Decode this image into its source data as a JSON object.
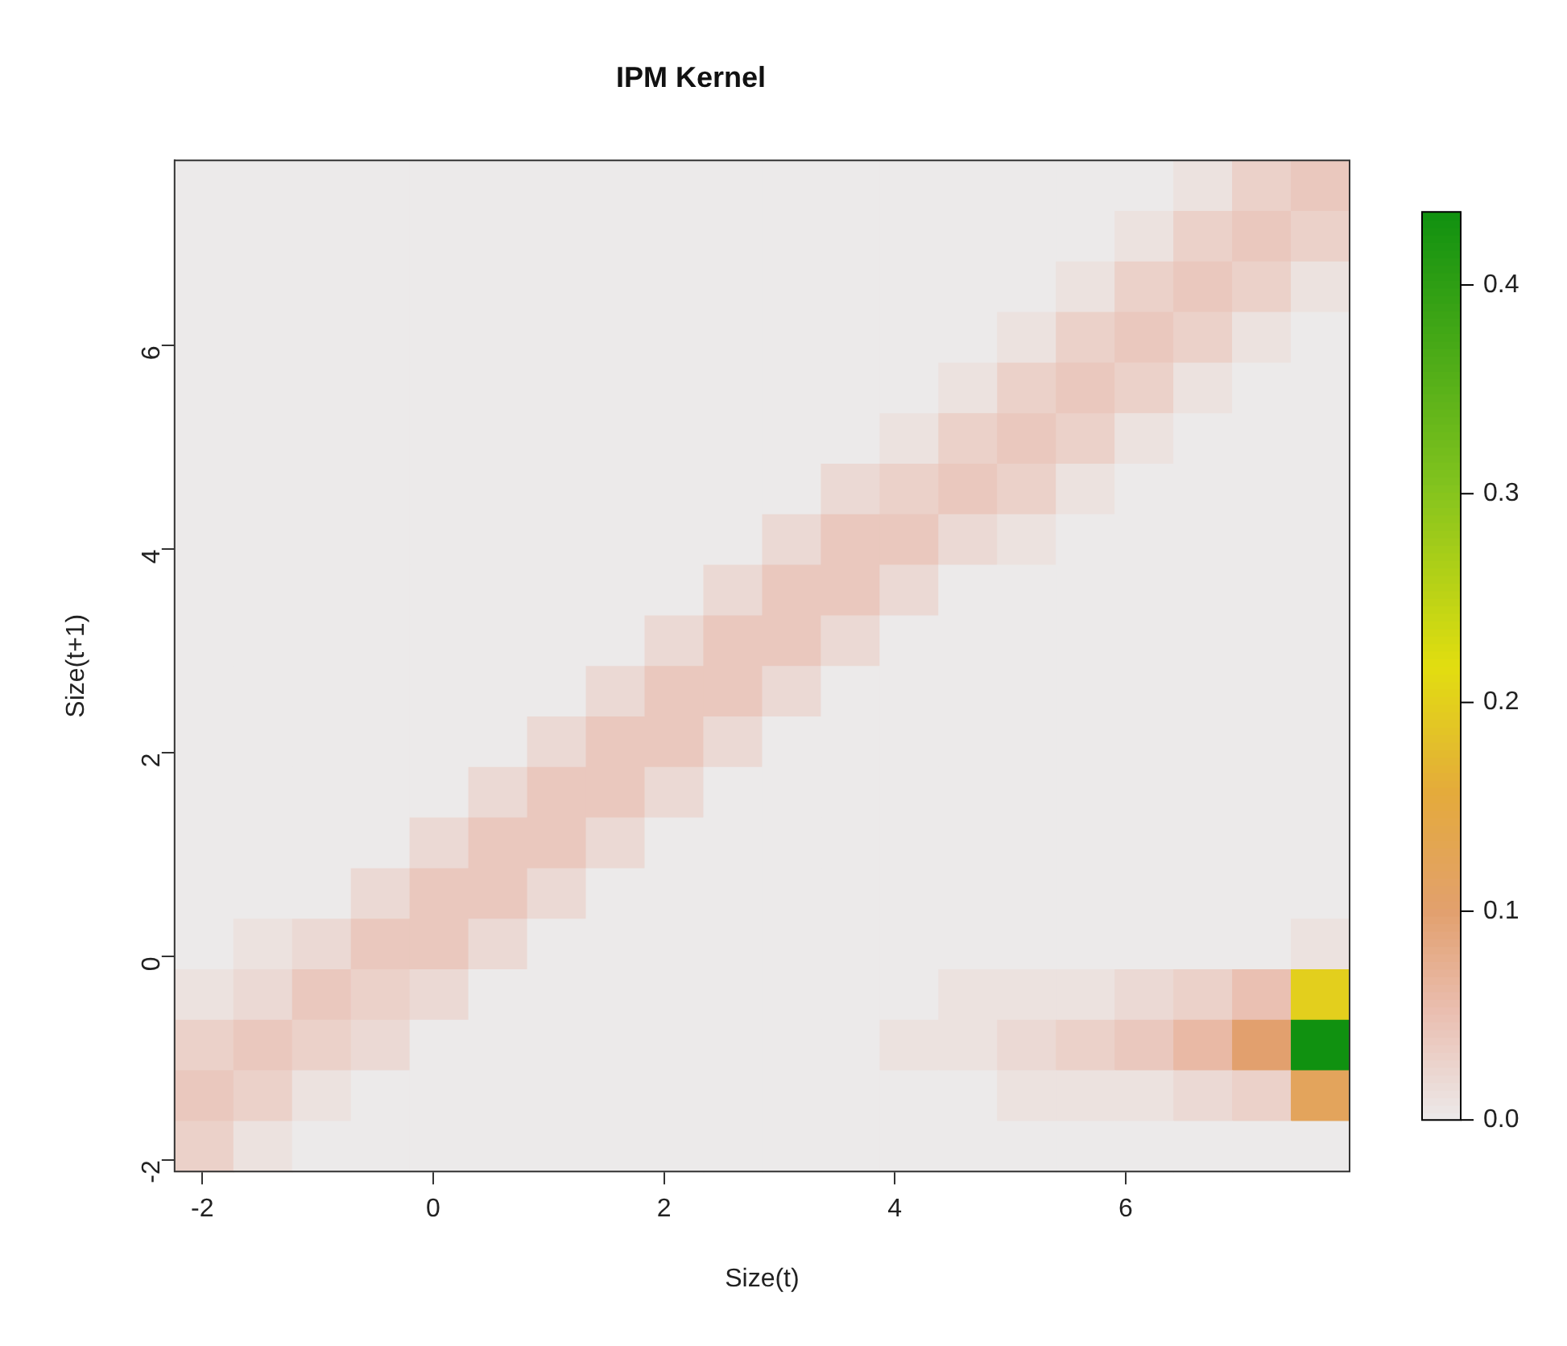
{
  "chart_data": {
    "type": "heatmap",
    "title": "IPM Kernel",
    "xlabel": "Size(t)",
    "ylabel": "Size(t+1)",
    "xlim": [
      -2.24,
      7.94
    ],
    "ylim": [
      -2.11,
      7.82
    ],
    "xticks": [
      -2,
      0,
      2,
      4,
      6
    ],
    "yticks": [
      -2,
      0,
      2,
      4,
      6
    ],
    "clim": [
      0,
      0.435
    ],
    "cticks": [
      {
        "value": 0,
        "label": "0.0"
      },
      0.1,
      0.2,
      0.3,
      0.4
    ],
    "cells": [
      [
        0,
        0,
        0,
        0,
        0,
        0,
        0,
        0,
        0,
        0,
        0,
        0,
        0,
        0,
        0,
        0,
        0,
        0.01,
        0.03,
        0.04
      ],
      [
        0,
        0,
        0,
        0,
        0,
        0,
        0,
        0,
        0,
        0,
        0,
        0,
        0,
        0,
        0,
        0,
        0.01,
        0.03,
        0.04,
        0.03
      ],
      [
        0,
        0,
        0,
        0,
        0,
        0,
        0,
        0,
        0,
        0,
        0,
        0,
        0,
        0,
        0,
        0.01,
        0.03,
        0.04,
        0.03,
        0.01
      ],
      [
        0,
        0,
        0,
        0,
        0,
        0,
        0,
        0,
        0,
        0,
        0,
        0,
        0,
        0,
        0.01,
        0.03,
        0.04,
        0.03,
        0.01,
        0
      ],
      [
        0,
        0,
        0,
        0,
        0,
        0,
        0,
        0,
        0,
        0,
        0,
        0,
        0,
        0.01,
        0.03,
        0.04,
        0.03,
        0.01,
        0,
        0
      ],
      [
        0,
        0,
        0,
        0,
        0,
        0,
        0,
        0,
        0,
        0,
        0,
        0,
        0.01,
        0.03,
        0.04,
        0.03,
        0.01,
        0,
        0,
        0
      ],
      [
        0,
        0,
        0,
        0,
        0,
        0,
        0,
        0,
        0,
        0,
        0,
        0.02,
        0.03,
        0.04,
        0.03,
        0.01,
        0,
        0,
        0,
        0
      ],
      [
        0,
        0,
        0,
        0,
        0,
        0,
        0,
        0,
        0,
        0,
        0.02,
        0.04,
        0.04,
        0.02,
        0.01,
        0,
        0,
        0,
        0,
        0
      ],
      [
        0,
        0,
        0,
        0,
        0,
        0,
        0,
        0,
        0,
        0.02,
        0.04,
        0.04,
        0.02,
        0,
        0,
        0,
        0,
        0,
        0,
        0
      ],
      [
        0,
        0,
        0,
        0,
        0,
        0,
        0,
        0,
        0.02,
        0.04,
        0.04,
        0.02,
        0,
        0,
        0,
        0,
        0,
        0,
        0,
        0
      ],
      [
        0,
        0,
        0,
        0,
        0,
        0,
        0,
        0.02,
        0.04,
        0.04,
        0.02,
        0,
        0,
        0,
        0,
        0,
        0,
        0,
        0,
        0
      ],
      [
        0,
        0,
        0,
        0,
        0,
        0,
        0.02,
        0.04,
        0.04,
        0.02,
        0,
        0,
        0,
        0,
        0,
        0,
        0,
        0,
        0,
        0
      ],
      [
        0,
        0,
        0,
        0,
        0,
        0.02,
        0.04,
        0.04,
        0.02,
        0,
        0,
        0,
        0,
        0,
        0,
        0,
        0,
        0,
        0,
        0
      ],
      [
        0,
        0,
        0,
        0,
        0.02,
        0.04,
        0.04,
        0.02,
        0,
        0,
        0,
        0,
        0,
        0,
        0,
        0,
        0,
        0,
        0,
        0
      ],
      [
        0,
        0,
        0,
        0.02,
        0.04,
        0.04,
        0.02,
        0,
        0,
        0,
        0,
        0,
        0,
        0,
        0,
        0,
        0,
        0,
        0,
        0
      ],
      [
        0,
        0.01,
        0.02,
        0.04,
        0.04,
        0.02,
        0,
        0,
        0,
        0,
        0,
        0,
        0,
        0,
        0,
        0,
        0,
        0,
        0,
        0.01
      ],
      [
        0.01,
        0.02,
        0.04,
        0.03,
        0.02,
        0,
        0,
        0,
        0,
        0,
        0,
        0,
        0,
        0.01,
        0.01,
        0.01,
        0.02,
        0.03,
        0.05,
        0.2
      ],
      [
        0.03,
        0.04,
        0.03,
        0.02,
        0,
        0,
        0,
        0,
        0,
        0,
        0,
        0,
        0.01,
        0.01,
        0.02,
        0.03,
        0.04,
        0.06,
        0.1,
        0.435
      ],
      [
        0.04,
        0.03,
        0.01,
        0,
        0,
        0,
        0,
        0,
        0,
        0,
        0,
        0,
        0,
        0,
        0.01,
        0.01,
        0.01,
        0.02,
        0.03,
        0.12
      ],
      [
        0.03,
        0.01,
        0,
        0,
        0,
        0,
        0,
        0,
        0,
        0,
        0,
        0,
        0,
        0,
        0,
        0,
        0,
        0,
        0,
        0
      ]
    ]
  }
}
